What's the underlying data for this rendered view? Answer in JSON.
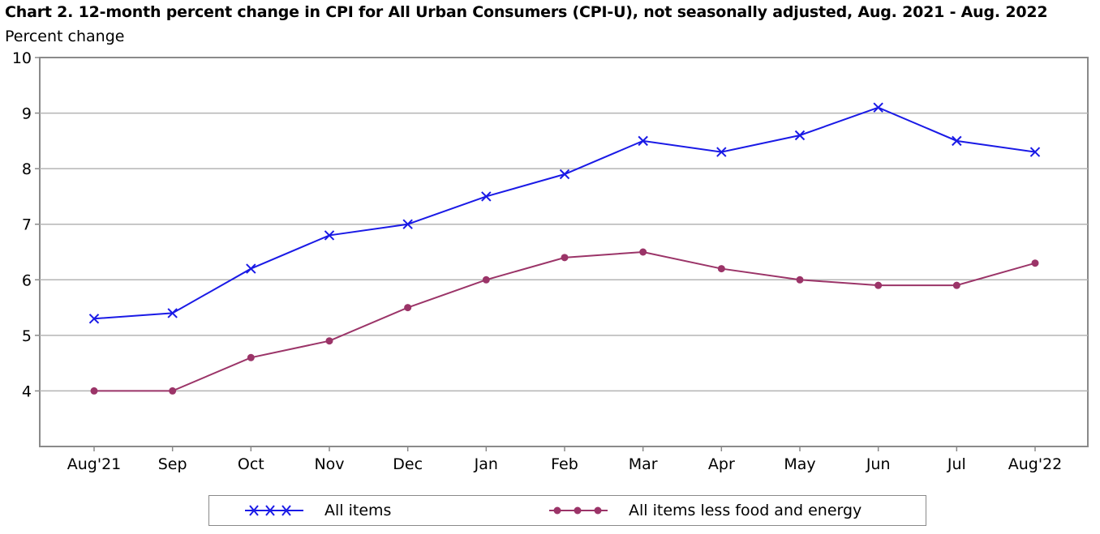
{
  "chart_data": {
    "type": "line",
    "title": "Chart 2. 12-month percent change in CPI for All Urban Consumers (CPI-U), not seasonally adjusted, Aug. 2021 - Aug. 2022",
    "ylabel": "Percent change",
    "xlabel": "",
    "categories": [
      "Aug'21",
      "Sep",
      "Oct",
      "Nov",
      "Dec",
      "Jan",
      "Feb",
      "Mar",
      "Apr",
      "May",
      "Jun",
      "Jul",
      "Aug'22"
    ],
    "ylim": [
      3,
      10
    ],
    "yticks": [
      "10",
      "9",
      "8",
      "7",
      "6",
      "5",
      "4"
    ],
    "grid": true,
    "legend_position": "bottom",
    "series": [
      {
        "name": "All items",
        "color": "#1a1ae6",
        "marker": "x",
        "values": [
          5.3,
          5.4,
          6.2,
          6.8,
          7.0,
          7.5,
          7.9,
          8.5,
          8.3,
          8.6,
          9.1,
          8.5,
          8.3
        ]
      },
      {
        "name": "All items less food and energy",
        "color": "#9b3468",
        "marker": "circle",
        "values": [
          4.0,
          4.0,
          4.6,
          4.9,
          5.5,
          6.0,
          6.4,
          6.5,
          6.2,
          6.0,
          5.9,
          5.9,
          6.3
        ]
      }
    ]
  }
}
